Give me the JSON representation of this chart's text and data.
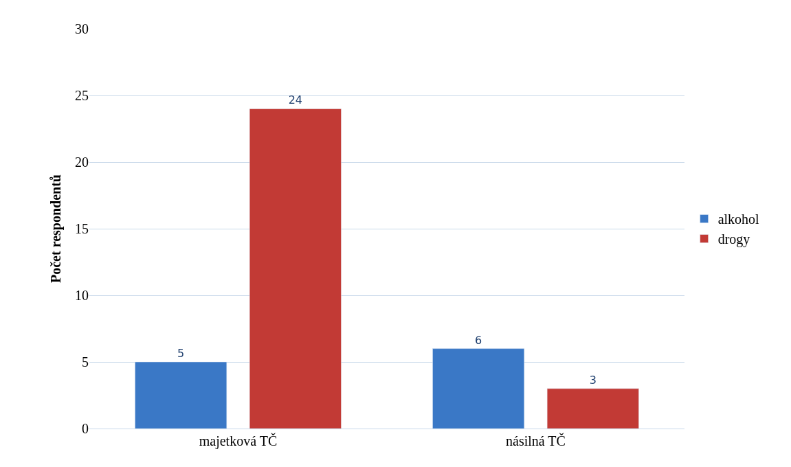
{
  "chart_data": {
    "type": "bar",
    "ylabel": "Počet respondentů",
    "categories": [
      "majetková TČ",
      "násilná TČ"
    ],
    "series": [
      {
        "name": "alkohol",
        "color": "#3a78c6",
        "values": [
          5,
          6
        ]
      },
      {
        "name": "drogy",
        "color": "#c23a35",
        "values": [
          24,
          3
        ]
      }
    ],
    "ylim": [
      0,
      30
    ],
    "yticks": [
      0,
      5,
      10,
      15,
      20,
      25,
      30
    ],
    "grid": "y",
    "legend": "right",
    "data_labels": true
  }
}
